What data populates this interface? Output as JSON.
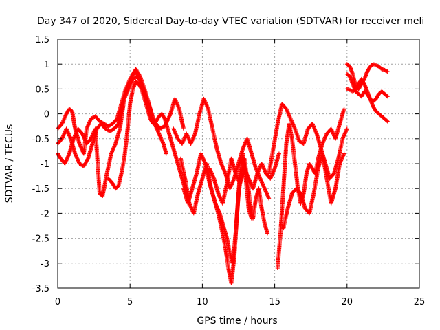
{
  "chart_data": {
    "type": "scatter",
    "title": "Day 347 of 2020, Sidereal Day-to-day VTEC variation (SDTVAR) for receiver meli",
    "xlabel": "GPS time / hours",
    "ylabel": "SDTVAR / TECUs",
    "xlim": [
      0,
      25
    ],
    "ylim": [
      -3.5,
      1.5
    ],
    "xticks": [
      0,
      5,
      10,
      15,
      20,
      25
    ],
    "xtick_labels": [
      "0",
      "5",
      "10",
      "15",
      "20",
      "25"
    ],
    "yticks": [
      -3.5,
      -3,
      -2.5,
      -2,
      -1.5,
      -1,
      -0.5,
      0,
      0.5,
      1,
      1.5
    ],
    "ytick_labels": [
      "-3.5",
      "-3",
      "-2.5",
      "-2",
      "-1.5",
      "-1",
      "-0.5",
      "0",
      "0.5",
      "1",
      "1.5"
    ],
    "grid": true,
    "marker": "plus",
    "color": "#ff0000",
    "series": [
      {
        "x": [
          0.0,
          0.3,
          0.6,
          0.8,
          1.0,
          1.2,
          1.5,
          1.8,
          2.0,
          2.3,
          2.6,
          2.9,
          3.2,
          3.5,
          3.8,
          4.1,
          4.4,
          4.7,
          5.0,
          5.3,
          5.5,
          5.8,
          6.1,
          6.4,
          6.7,
          7.0,
          7.3,
          7.5
        ],
        "y": [
          -0.3,
          -0.2,
          0.0,
          0.1,
          0.05,
          -0.3,
          -0.6,
          -0.8,
          -0.3,
          -0.1,
          -0.05,
          -0.15,
          -0.2,
          -0.25,
          -0.2,
          -0.1,
          0.2,
          0.5,
          0.7,
          0.85,
          0.8,
          0.6,
          0.3,
          0.0,
          -0.2,
          -0.4,
          -0.6,
          -0.8
        ]
      },
      {
        "x": [
          0.0,
          0.3,
          0.6,
          0.9,
          1.2,
          1.5,
          1.8,
          2.1,
          2.4,
          2.7,
          3.0,
          3.3,
          3.6,
          3.9,
          4.2,
          4.5,
          4.8,
          5.1,
          5.4,
          5.7,
          6.0,
          6.3,
          6.6,
          6.9,
          7.2
        ],
        "y": [
          -0.6,
          -0.5,
          -0.3,
          -0.5,
          -0.8,
          -1.0,
          -1.05,
          -0.9,
          -0.6,
          -0.3,
          -0.2,
          -0.3,
          -0.35,
          -0.3,
          -0.2,
          0.2,
          0.5,
          0.7,
          0.9,
          0.75,
          0.5,
          0.2,
          -0.1,
          -0.25,
          -0.3
        ]
      },
      {
        "x": [
          0.0,
          0.2,
          0.5,
          0.8,
          1.1,
          1.4,
          1.7,
          2.0,
          2.3,
          2.6,
          2.9,
          3.1,
          3.4,
          3.7,
          4.0,
          4.3,
          4.6,
          4.9,
          5.2,
          5.5,
          5.8,
          6.2,
          6.6,
          7.0,
          7.4,
          7.8,
          8.1,
          8.4,
          8.7
        ],
        "y": [
          -0.8,
          -0.9,
          -1.0,
          -0.8,
          -0.5,
          -0.3,
          -0.4,
          -0.6,
          -0.5,
          -0.3,
          -1.6,
          -1.65,
          -1.2,
          -0.8,
          -0.6,
          -0.3,
          0.3,
          0.5,
          0.7,
          0.75,
          0.6,
          0.3,
          -0.1,
          -0.3,
          -0.25,
          0.0,
          0.3,
          0.1,
          -0.3
        ]
      },
      {
        "x": [
          3.5,
          3.8,
          4.0,
          4.2,
          4.4,
          4.6,
          4.8,
          5.0,
          5.2,
          5.4,
          5.6,
          5.8,
          6.0,
          6.2,
          6.4,
          6.6,
          6.8,
          7.0,
          7.2,
          7.4,
          7.6,
          7.8,
          8.0,
          8.2,
          8.4,
          8.6,
          8.8,
          9.0
        ],
        "y": [
          -1.3,
          -1.4,
          -1.5,
          -1.45,
          -1.2,
          -0.9,
          -0.4,
          0.2,
          0.5,
          0.65,
          0.6,
          0.5,
          0.3,
          0.1,
          -0.1,
          -0.2,
          -0.15,
          -0.05,
          0.0,
          -0.1,
          -0.3,
          -0.5,
          -0.7,
          -0.9,
          -1.1,
          -1.3,
          -1.5,
          -1.7
        ]
      },
      {
        "x": [
          8.0,
          8.3,
          8.6,
          8.9,
          9.2,
          9.5,
          9.8,
          10.1,
          10.4,
          10.7,
          11.0,
          11.3,
          11.6,
          11.9,
          12.2,
          12.5,
          12.8,
          13.1,
          13.4,
          13.7,
          14.0,
          14.3,
          14.6
        ],
        "y": [
          -0.3,
          -0.5,
          -0.6,
          -0.4,
          -0.6,
          -0.4,
          0.0,
          0.3,
          0.1,
          -0.3,
          -0.7,
          -1.0,
          -1.2,
          -1.5,
          -1.3,
          -1.0,
          -0.7,
          -0.5,
          -0.8,
          -1.1,
          -1.3,
          -1.5,
          -1.7
        ]
      },
      {
        "x": [
          8.5,
          8.8,
          9.1,
          9.4,
          9.7,
          10.0,
          10.3,
          10.6,
          10.9,
          11.2,
          11.5,
          11.7,
          11.9,
          12.1,
          12.3,
          12.5,
          12.7,
          12.9,
          13.1,
          13.3,
          13.5,
          13.7,
          13.9,
          14.1,
          14.3,
          14.5
        ],
        "y": [
          -0.9,
          -1.3,
          -1.8,
          -2.0,
          -1.6,
          -1.3,
          -1.0,
          -1.5,
          -1.8,
          -2.0,
          -2.3,
          -2.5,
          -2.8,
          -3.0,
          -2.4,
          -1.6,
          -1.2,
          -0.9,
          -1.3,
          -1.8,
          -2.1,
          -1.7,
          -1.5,
          -1.9,
          -2.2,
          -2.4
        ]
      },
      {
        "x": [
          8.7,
          9.0,
          9.3,
          9.6,
          9.9,
          10.2,
          10.5,
          10.8,
          11.1,
          11.4,
          11.6,
          11.8,
          12.0,
          12.2,
          12.4,
          12.6,
          12.8,
          13.0,
          13.2,
          13.4
        ],
        "y": [
          -1.5,
          -1.8,
          -1.5,
          -1.2,
          -0.8,
          -1.0,
          -1.4,
          -1.7,
          -2.0,
          -2.4,
          -2.7,
          -3.1,
          -3.4,
          -2.9,
          -2.0,
          -1.2,
          -0.8,
          -1.3,
          -1.9,
          -2.1
        ]
      },
      {
        "x": [
          10.5,
          10.8,
          11.1,
          11.4,
          11.7,
          12.0,
          12.3,
          12.6,
          12.9,
          13.2,
          13.5,
          13.8,
          14.1,
          14.4,
          14.7,
          15.0,
          15.3
        ],
        "y": [
          -1.1,
          -1.3,
          -1.6,
          -1.8,
          -1.4,
          -0.9,
          -1.2,
          -1.4,
          -1.1,
          -1.3,
          -1.5,
          -1.2,
          -1.0,
          -1.2,
          -1.3,
          -1.1,
          -0.8
        ]
      },
      {
        "x": [
          14.6,
          14.9,
          15.2,
          15.5,
          15.8,
          16.1,
          16.4,
          16.7,
          17.0,
          17.3,
          17.6,
          17.9,
          18.2,
          18.5,
          18.8,
          19.1,
          19.4,
          19.7,
          20.0
        ],
        "y": [
          -1.2,
          -0.7,
          -0.2,
          0.2,
          0.1,
          -0.1,
          -0.3,
          -0.55,
          -0.6,
          -0.3,
          -0.2,
          -0.4,
          -0.7,
          -1.0,
          -1.3,
          -1.2,
          -0.9,
          -0.5,
          -0.3
        ]
      },
      {
        "x": [
          15.2,
          15.4,
          15.6,
          15.8,
          16.0,
          16.2,
          16.4,
          16.6,
          16.8,
          17.0,
          17.2,
          17.4,
          17.6,
          17.8,
          18.0,
          18.3,
          18.6,
          18.9,
          19.2,
          19.5,
          19.8
        ],
        "y": [
          -3.1,
          -2.4,
          -1.5,
          -0.6,
          -0.2,
          -0.5,
          -1.0,
          -1.5,
          -1.8,
          -1.6,
          -1.2,
          -1.0,
          -1.1,
          -1.2,
          -0.9,
          -0.6,
          -0.4,
          -0.3,
          -0.5,
          -0.2,
          0.1
        ]
      },
      {
        "x": [
          15.6,
          15.9,
          16.2,
          16.5,
          16.8,
          17.1,
          17.4,
          17.7,
          18.0,
          18.3,
          18.6,
          18.9,
          19.2,
          19.5,
          19.8
        ],
        "y": [
          -2.3,
          -1.9,
          -1.6,
          -1.5,
          -1.6,
          -1.9,
          -2.0,
          -1.6,
          -1.1,
          -0.8,
          -1.3,
          -1.8,
          -1.5,
          -1.0,
          -0.8
        ]
      },
      {
        "x": [
          20.0,
          20.2,
          20.4,
          20.6,
          20.8,
          21.0,
          21.2,
          21.4,
          21.6,
          21.8,
          22.0,
          22.2,
          22.4,
          22.6,
          22.8
        ],
        "y": [
          1.0,
          0.95,
          0.8,
          0.55,
          0.5,
          0.6,
          0.7,
          0.85,
          0.95,
          1.0,
          0.98,
          0.95,
          0.9,
          0.88,
          0.85
        ]
      },
      {
        "x": [
          20.0,
          20.2,
          20.4,
          20.6,
          20.8,
          21.0,
          21.2,
          21.4,
          21.6,
          21.8,
          22.0,
          22.2,
          22.4,
          22.6,
          22.8
        ],
        "y": [
          0.5,
          0.48,
          0.45,
          0.5,
          0.6,
          0.7,
          0.6,
          0.45,
          0.3,
          0.25,
          0.3,
          0.4,
          0.45,
          0.4,
          0.35
        ]
      },
      {
        "x": [
          20.0,
          20.2,
          20.4,
          20.6,
          20.8,
          21.0,
          21.2,
          21.4,
          21.6,
          21.8,
          22.0,
          22.2,
          22.4,
          22.6,
          22.8
        ],
        "y": [
          0.8,
          0.75,
          0.6,
          0.45,
          0.4,
          0.35,
          0.45,
          0.4,
          0.3,
          0.15,
          0.05,
          0.0,
          -0.05,
          -0.1,
          -0.15
        ]
      }
    ]
  }
}
